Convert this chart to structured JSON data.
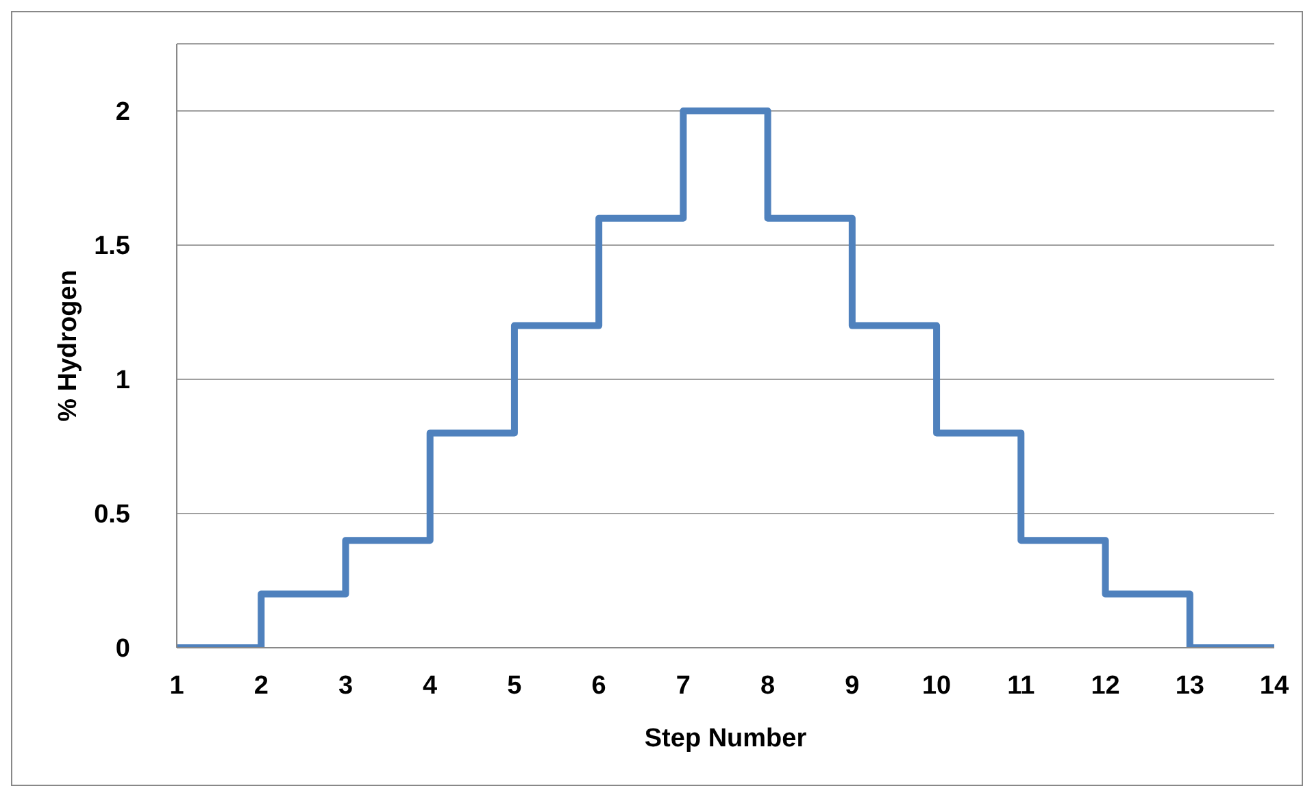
{
  "chart_data": {
    "type": "step",
    "xlabel": "Step Number",
    "ylabel": "% Hydrogen",
    "x": [
      1,
      2,
      3,
      4,
      5,
      6,
      7,
      8,
      9,
      10,
      11,
      12,
      13,
      14
    ],
    "series": [
      {
        "color": "#4f81bd",
        "values": [
          0,
          0.2,
          0.4,
          0.8,
          1.2,
          1.6,
          2,
          1.6,
          1.2,
          0.8,
          0.4,
          0.2,
          0,
          0
        ]
      }
    ],
    "xlim": [
      1,
      14
    ],
    "xticks": [
      1,
      2,
      3,
      4,
      5,
      6,
      7,
      8,
      9,
      10,
      11,
      12,
      13,
      14
    ],
    "ylim": [
      0,
      2.25
    ],
    "yticks": [
      0,
      0.5,
      1,
      1.5,
      2
    ],
    "grid": "y",
    "legend": false,
    "marker": "none",
    "line_style": "solid"
  }
}
